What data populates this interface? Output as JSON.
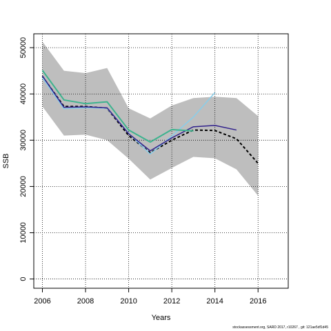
{
  "chart_data": {
    "type": "line",
    "title": "",
    "xlabel": "Years",
    "ylabel": "SSB",
    "xlim": [
      2005.6,
      2017.4
    ],
    "ylim": [
      -2000,
      53000
    ],
    "x_ticks": [
      2006,
      2008,
      2010,
      2012,
      2014,
      2016
    ],
    "y_ticks": [
      0,
      10000,
      20000,
      30000,
      40000,
      50000
    ],
    "grid": true,
    "legend": "none",
    "confidence_band": {
      "color": "#bebebe",
      "x": [
        2006,
        2007,
        2008,
        2009,
        2010,
        2011,
        2012,
        2013,
        2014,
        2015,
        2016
      ],
      "upper": [
        51300,
        45000,
        44500,
        45600,
        36900,
        34700,
        37500,
        39100,
        39400,
        39100,
        35200
      ],
      "lower": [
        37300,
        31000,
        31200,
        30000,
        26000,
        21500,
        24000,
        26400,
        26100,
        23700,
        18000
      ]
    },
    "series": [
      {
        "color": "#000000",
        "dashed": true,
        "width": 2,
        "x": [
          2006,
          2007,
          2008,
          2009,
          2010,
          2011,
          2012,
          2013,
          2014,
          2015,
          2016
        ],
        "values": [
          43800,
          37300,
          37300,
          36900,
          31000,
          27300,
          30000,
          32200,
          32100,
          30300,
          25000
        ]
      },
      {
        "color": "#87ceeb",
        "dashed": false,
        "width": 1.5,
        "x": [
          2006,
          2007,
          2008,
          2009,
          2010,
          2011,
          2012,
          2013,
          2014
        ],
        "values": [
          43500,
          36800,
          37000,
          36900,
          31500,
          27000,
          30900,
          35000,
          40300
        ]
      },
      {
        "color": "#31218c",
        "dashed": false,
        "width": 1.5,
        "x": [
          2006,
          2007,
          2008,
          2009,
          2010,
          2011,
          2012,
          2013,
          2014,
          2015
        ],
        "values": [
          43900,
          37100,
          37200,
          37000,
          31400,
          27700,
          30500,
          32900,
          33200,
          32200
        ]
      },
      {
        "color": "#3cb38e",
        "dashed": false,
        "width": 2,
        "x": [
          2006,
          2007,
          2008,
          2009,
          2010,
          2011,
          2012,
          2013
        ],
        "values": [
          45100,
          38700,
          37900,
          38300,
          32200,
          29600,
          32300,
          32000
        ]
      }
    ]
  },
  "footer": "stockassessment.org, SARD 2017, r10267 , git: 121ae5df1d45"
}
